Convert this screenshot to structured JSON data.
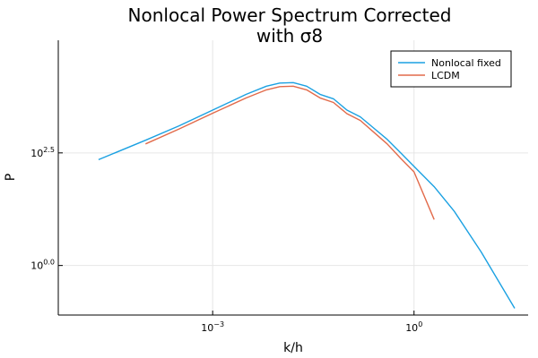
{
  "chart_data": {
    "type": "line",
    "title_line1": "Nonlocal Power Spectrum Corrected",
    "title_line2": "with σ8",
    "xlabel": "k/h",
    "ylabel": "P",
    "xscale": "log",
    "yscale": "log",
    "xlim_log10": [
      -5.3,
      1.7
    ],
    "ylim_log10": [
      -1.1,
      5.0
    ],
    "x_ticks": [
      {
        "log10": -3,
        "base": "10",
        "exp": "−3"
      },
      {
        "log10": 0,
        "base": "10",
        "exp": "0"
      }
    ],
    "y_ticks": [
      {
        "log10": 2.5,
        "base": "10",
        "exp": "2.5"
      },
      {
        "log10": 0.0,
        "base": "10",
        "exp": "0.0"
      }
    ],
    "grid": true,
    "legend_position": "top-right",
    "series": [
      {
        "name": "Nonlocal fixed",
        "color": "#1ba1e2",
        "log10_k": [
          -4.7,
          -4.0,
          -3.5,
          -3.0,
          -2.5,
          -2.2,
          -2.0,
          -1.8,
          -1.6,
          -1.4,
          -1.2,
          -1.0,
          -0.8,
          -0.6,
          -0.4,
          -0.2,
          0.0,
          0.3,
          0.6,
          1.0,
          1.5
        ],
        "log10_P": [
          2.35,
          2.78,
          3.1,
          3.45,
          3.8,
          3.98,
          4.05,
          4.06,
          3.98,
          3.8,
          3.7,
          3.45,
          3.3,
          3.05,
          2.8,
          2.5,
          2.2,
          1.75,
          1.2,
          0.3,
          -0.95
        ]
      },
      {
        "name": "LCDM",
        "color": "#e26a4a",
        "log10_k": [
          -4.0,
          -3.5,
          -3.0,
          -2.5,
          -2.2,
          -2.0,
          -1.8,
          -1.6,
          -1.4,
          -1.2,
          -1.0,
          -0.8,
          -0.6,
          -0.4,
          -0.2,
          0.0,
          0.3
        ],
        "log10_P": [
          2.7,
          3.03,
          3.38,
          3.72,
          3.9,
          3.97,
          3.98,
          3.9,
          3.72,
          3.62,
          3.37,
          3.22,
          2.96,
          2.7,
          2.38,
          2.08,
          1.02
        ]
      }
    ]
  }
}
